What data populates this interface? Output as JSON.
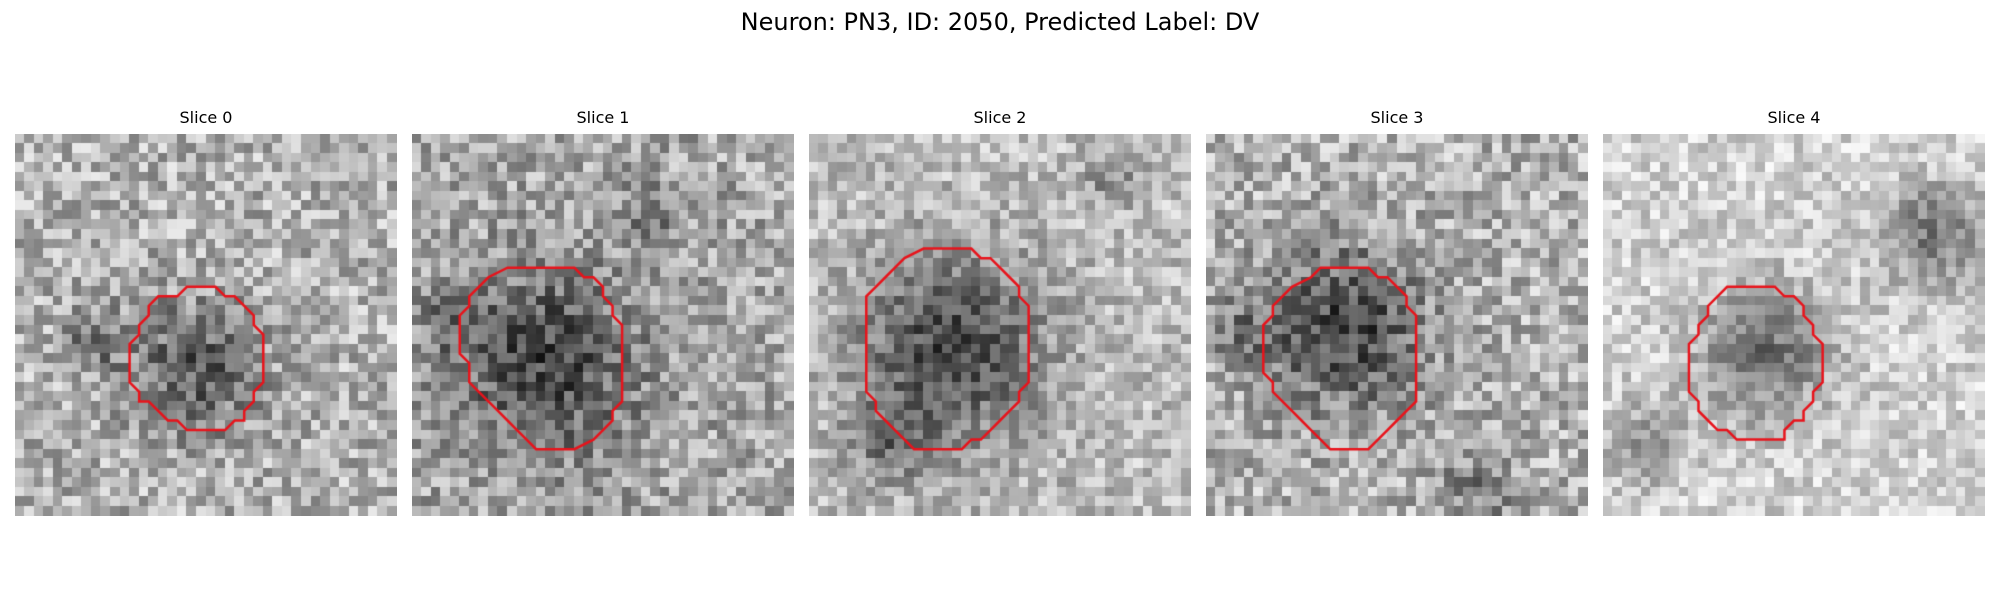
{
  "figure": {
    "title": "Neuron: PN3, ID: 2050, Predicted Label: DV"
  },
  "colors": {
    "contour": "#e8131b",
    "background": "#ffffff"
  },
  "panels": [
    {
      "label": "Slice 0",
      "contour": [
        [
          18,
          16
        ],
        [
          21,
          16
        ],
        [
          22,
          17
        ],
        [
          23,
          17
        ],
        [
          25,
          19
        ],
        [
          25,
          20
        ],
        [
          26,
          21
        ],
        [
          26,
          26
        ],
        [
          25,
          27
        ],
        [
          25,
          28
        ],
        [
          24,
          29
        ],
        [
          24,
          30
        ],
        [
          23,
          30
        ],
        [
          22,
          31
        ],
        [
          18,
          31
        ],
        [
          17,
          30
        ],
        [
          16,
          30
        ],
        [
          14,
          28
        ],
        [
          13,
          28
        ],
        [
          13,
          27
        ],
        [
          12,
          26
        ],
        [
          12,
          22
        ],
        [
          13,
          21
        ],
        [
          13,
          20
        ],
        [
          14,
          19
        ],
        [
          14,
          18
        ],
        [
          15,
          17
        ],
        [
          17,
          17
        ]
      ]
    },
    {
      "label": "Slice 1",
      "contour": [
        [
          13,
          14
        ],
        [
          17,
          14
        ],
        [
          18,
          15
        ],
        [
          19,
          15
        ],
        [
          20,
          16
        ],
        [
          20,
          17
        ],
        [
          21,
          18
        ],
        [
          21,
          19
        ],
        [
          22,
          20
        ],
        [
          22,
          28
        ],
        [
          21,
          29
        ],
        [
          21,
          30
        ],
        [
          20,
          31
        ],
        [
          19,
          32
        ],
        [
          17,
          33
        ],
        [
          13,
          33
        ],
        [
          12,
          32
        ],
        [
          11,
          31
        ],
        [
          10,
          30
        ],
        [
          9,
          29
        ],
        [
          8,
          28
        ],
        [
          7,
          27
        ],
        [
          6,
          26
        ],
        [
          6,
          24
        ],
        [
          5,
          23
        ],
        [
          5,
          19
        ],
        [
          6,
          18
        ],
        [
          6,
          17
        ],
        [
          7,
          16
        ],
        [
          8,
          15
        ],
        [
          10,
          14
        ]
      ]
    },
    {
      "label": "Slice 2",
      "contour": [
        [
          14,
          12
        ],
        [
          17,
          12
        ],
        [
          18,
          13
        ],
        [
          19,
          13
        ],
        [
          20,
          14
        ],
        [
          21,
          15
        ],
        [
          22,
          16
        ],
        [
          22,
          17
        ],
        [
          23,
          18
        ],
        [
          23,
          26
        ],
        [
          22,
          27
        ],
        [
          22,
          28
        ],
        [
          21,
          29
        ],
        [
          20,
          30
        ],
        [
          19,
          31
        ],
        [
          18,
          32
        ],
        [
          17,
          32
        ],
        [
          16,
          33
        ],
        [
          11,
          33
        ],
        [
          10,
          32
        ],
        [
          9,
          31
        ],
        [
          8,
          30
        ],
        [
          7,
          29
        ],
        [
          7,
          28
        ],
        [
          6,
          27
        ],
        [
          6,
          23
        ],
        [
          6,
          17
        ],
        [
          7,
          16
        ],
        [
          8,
          15
        ],
        [
          9,
          14
        ],
        [
          10,
          13
        ],
        [
          12,
          12
        ]
      ]
    },
    {
      "label": "Slice 3",
      "contour": [
        [
          13,
          14
        ],
        [
          17,
          14
        ],
        [
          18,
          15
        ],
        [
          19,
          15
        ],
        [
          20,
          16
        ],
        [
          21,
          17
        ],
        [
          21,
          18
        ],
        [
          22,
          19
        ],
        [
          22,
          25
        ],
        [
          22,
          28
        ],
        [
          21,
          29
        ],
        [
          20,
          30
        ],
        [
          19,
          31
        ],
        [
          18,
          32
        ],
        [
          17,
          33
        ],
        [
          13,
          33
        ],
        [
          12,
          32
        ],
        [
          11,
          31
        ],
        [
          10,
          30
        ],
        [
          9,
          29
        ],
        [
          8,
          28
        ],
        [
          7,
          27
        ],
        [
          7,
          26
        ],
        [
          6,
          25
        ],
        [
          6,
          20
        ],
        [
          7,
          19
        ],
        [
          7,
          18
        ],
        [
          8,
          17
        ],
        [
          9,
          16
        ],
        [
          11,
          15
        ],
        [
          12,
          14
        ]
      ]
    },
    {
      "label": "Slice 4",
      "contour": [
        [
          13,
          16
        ],
        [
          18,
          16
        ],
        [
          19,
          17
        ],
        [
          20,
          17
        ],
        [
          21,
          18
        ],
        [
          21,
          19
        ],
        [
          22,
          20
        ],
        [
          22,
          21
        ],
        [
          23,
          22
        ],
        [
          23,
          26
        ],
        [
          22,
          27
        ],
        [
          22,
          28
        ],
        [
          21,
          29
        ],
        [
          21,
          30
        ],
        [
          20,
          30
        ],
        [
          19,
          31
        ],
        [
          19,
          32
        ],
        [
          14,
          32
        ],
        [
          13,
          31
        ],
        [
          12,
          31
        ],
        [
          11,
          30
        ],
        [
          10,
          29
        ],
        [
          10,
          28
        ],
        [
          9,
          27
        ],
        [
          9,
          22
        ],
        [
          10,
          21
        ],
        [
          10,
          20
        ],
        [
          11,
          19
        ],
        [
          11,
          18
        ],
        [
          12,
          17
        ]
      ]
    }
  ]
}
